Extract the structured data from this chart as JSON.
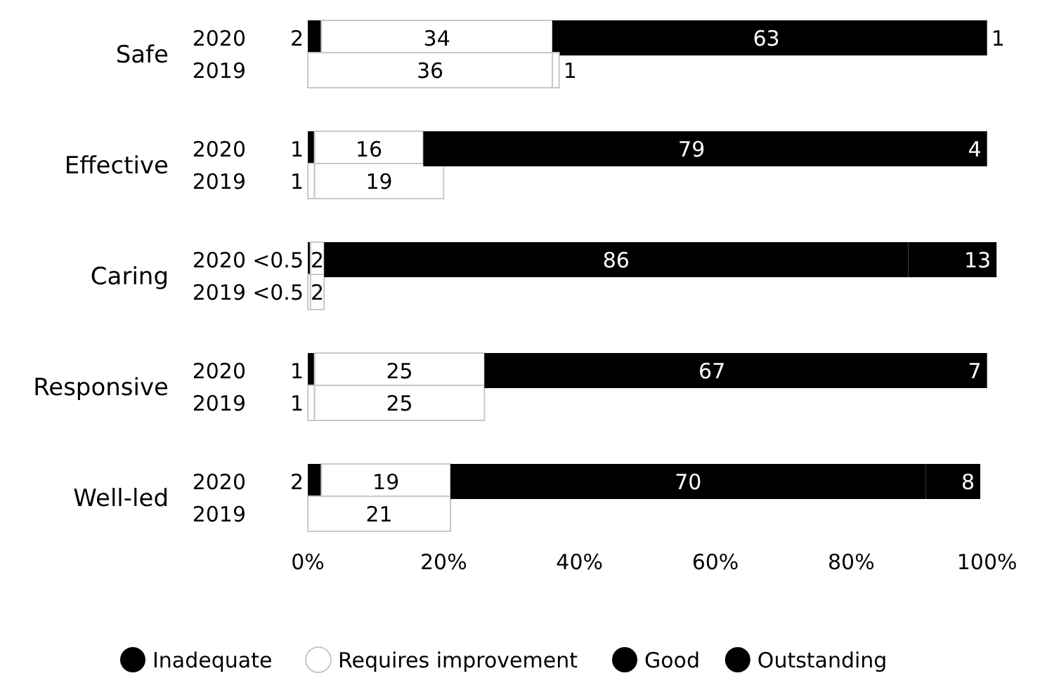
{
  "chart_data": {
    "type": "bar",
    "orientation": "horizontal",
    "stacked": true,
    "categories": [
      "2020",
      "2019",
      "2020",
      "2019",
      "2020",
      "2019",
      "2020",
      "2019",
      "2020",
      "2019"
    ],
    "annotations": [
      "Safe",
      "Effective",
      "Caring",
      "Responsive",
      "Well-led"
    ],
    "series": [
      {
        "name": "Inadequate",
        "color": "#000000",
        "colors": [
          "#000000",
          null,
          "#000000",
          "#ffffff",
          "#000000",
          "#ffffff",
          "#000000",
          "#ffffff",
          "#000000",
          null
        ],
        "values": [
          2,
          null,
          1,
          1,
          0.4,
          0.4,
          1,
          1,
          2,
          null
        ],
        "value_labels": [
          "2",
          null,
          "1",
          "1",
          "<0.5",
          "<0.5",
          "1",
          "1",
          "2",
          null
        ]
      },
      {
        "name": "Requires improvement",
        "color": "#ffffff",
        "values": [
          34,
          36,
          16,
          19,
          2,
          2,
          25,
          25,
          19,
          21
        ],
        "value_labels": [
          "34",
          "36",
          "16",
          "19",
          "2",
          "2",
          "25",
          "25",
          "19",
          "21"
        ]
      },
      {
        "name": "Good",
        "color": "#000000",
        "colors": [
          "#000000",
          null,
          "#000000",
          null,
          "#000000",
          null,
          "#000000",
          null,
          "#000000",
          null
        ],
        "values": [
          63,
          null,
          79,
          null,
          86,
          null,
          67,
          null,
          70,
          null
        ],
        "value_labels": [
          "63",
          null,
          "79",
          null,
          "86",
          null,
          "67",
          null,
          "70",
          null
        ]
      },
      {
        "name": "Outstanding",
        "color": "#000000",
        "colors": [
          "#000000",
          "#ffffff",
          "#000000",
          null,
          "#000000",
          null,
          "#000000",
          null,
          "#000000",
          null
        ],
        "values": [
          1,
          1,
          4,
          null,
          13,
          null,
          7,
          null,
          8,
          null
        ],
        "value_labels": [
          "1",
          "1",
          "4",
          null,
          "13",
          null,
          "7",
          null,
          "8",
          null
        ]
      }
    ],
    "xlim": [
      0,
      102
    ],
    "xticks": [
      {
        "value": 0,
        "label": "0%"
      },
      {
        "value": 20,
        "label": "20%"
      },
      {
        "value": 40,
        "label": "40%"
      },
      {
        "value": 60,
        "label": "60%"
      },
      {
        "value": 80,
        "label": "80%"
      },
      {
        "value": 100,
        "label": "100%"
      }
    ],
    "grid": false,
    "legend": "bottom"
  }
}
